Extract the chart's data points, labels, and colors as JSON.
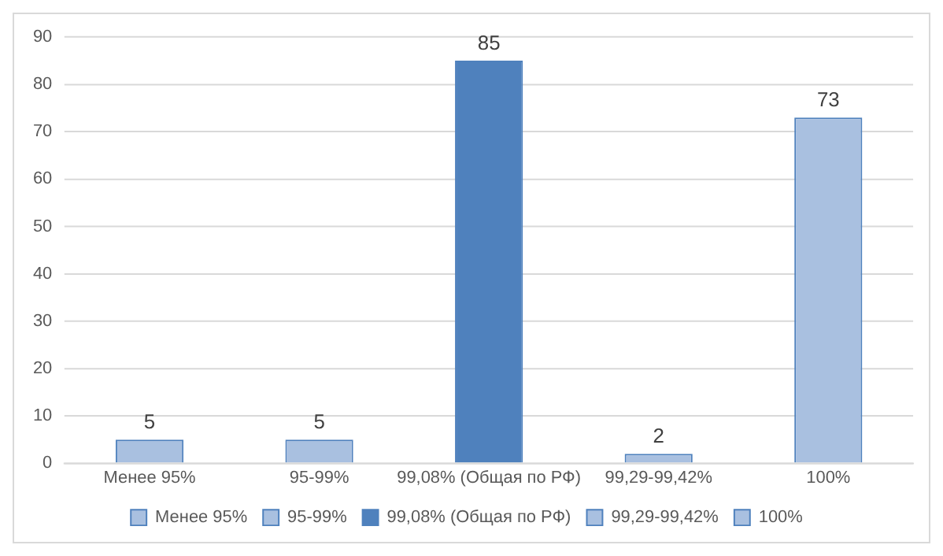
{
  "chart_data": {
    "type": "bar",
    "categories": [
      "Менее 95%",
      "95-99%",
      "99,08% (Общая по РФ)",
      "99,29-99,42%",
      "100%"
    ],
    "series": [
      {
        "name": "Менее 95%",
        "color": "#a9c0e0",
        "values": [
          5,
          null,
          null,
          null,
          null
        ]
      },
      {
        "name": "95-99%",
        "color": "#a9c0e0",
        "values": [
          null,
          5,
          null,
          null,
          null
        ]
      },
      {
        "name": "99,08% (Общая по РФ)",
        "color": "#4f81bd",
        "values": [
          null,
          null,
          85,
          null,
          null
        ]
      },
      {
        "name": "99,29-99,42%",
        "color": "#a9c0e0",
        "values": [
          null,
          null,
          null,
          2,
          null
        ]
      },
      {
        "name": "100%",
        "color": "#a9c0e0",
        "values": [
          null,
          null,
          null,
          null,
          73
        ]
      }
    ],
    "ylim": [
      0,
      90
    ],
    "yticks": [
      0,
      10,
      20,
      30,
      40,
      50,
      60,
      70,
      80,
      90
    ],
    "grid": "y",
    "legend": "bottom",
    "data_labels": true
  }
}
